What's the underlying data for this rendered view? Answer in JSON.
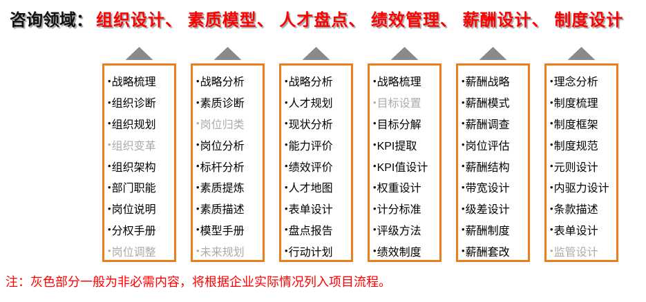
{
  "page": {
    "title_label": "咨询领域：",
    "title_categories": "组织设计、 素质模型、 人才盘点、 绩效管理、 薪酬设计、 制度设计",
    "note": "注：灰色部分一般为非必需内容，将根据企业实际情况列入项目流程。"
  },
  "bullet": "•",
  "colors": {
    "accent_orange": "#EE7D1C",
    "arrow_gray": "#8A8A8A",
    "muted_gray_text": "#ABABAB",
    "highlight_red": "#FF0000"
  },
  "columns": [
    {
      "category": "组织设计",
      "items": [
        {
          "text": "战略梳理",
          "muted": false
        },
        {
          "text": "组织诊断",
          "muted": false
        },
        {
          "text": "组织规划",
          "muted": false
        },
        {
          "text": "组织变革",
          "muted": true
        },
        {
          "text": "组织架构",
          "muted": false
        },
        {
          "text": "部门职能",
          "muted": false
        },
        {
          "text": "岗位说明",
          "muted": false
        },
        {
          "text": "分权手册",
          "muted": false
        },
        {
          "text": "岗位调整",
          "muted": true
        }
      ]
    },
    {
      "category": "素质模型",
      "items": [
        {
          "text": "战略分析",
          "muted": false
        },
        {
          "text": "素质诊断",
          "muted": false
        },
        {
          "text": "岗位归类",
          "muted": true
        },
        {
          "text": "岗位分析",
          "muted": false
        },
        {
          "text": "标杆分析",
          "muted": false
        },
        {
          "text": "素质提炼",
          "muted": false
        },
        {
          "text": "素质描述",
          "muted": false
        },
        {
          "text": "模型手册",
          "muted": false
        },
        {
          "text": "未来规划",
          "muted": true
        }
      ]
    },
    {
      "category": "人才盘点",
      "items": [
        {
          "text": "战略分析",
          "muted": false
        },
        {
          "text": "人才规划",
          "muted": false
        },
        {
          "text": "现状分析",
          "muted": false
        },
        {
          "text": "能力评价",
          "muted": false
        },
        {
          "text": "绩效评价",
          "muted": false
        },
        {
          "text": "人才地图",
          "muted": false
        },
        {
          "text": "表单设计",
          "muted": false
        },
        {
          "text": "盘点报告",
          "muted": false
        },
        {
          "text": "行动计划",
          "muted": false
        }
      ]
    },
    {
      "category": "绩效管理",
      "items": [
        {
          "text": "战略梳理",
          "muted": false
        },
        {
          "text": "目标设置",
          "muted": true
        },
        {
          "text": "目标分解",
          "muted": false
        },
        {
          "text": "KPI提取",
          "muted": false
        },
        {
          "text": "KPI值设计",
          "muted": false
        },
        {
          "text": "权重设计",
          "muted": false
        },
        {
          "text": "计分标准",
          "muted": false
        },
        {
          "text": "评级方法",
          "muted": false
        },
        {
          "text": "绩效制度",
          "muted": false
        }
      ]
    },
    {
      "category": "薪酬设计",
      "items": [
        {
          "text": "薪酬战略",
          "muted": false
        },
        {
          "text": "薪酬模式",
          "muted": false
        },
        {
          "text": "薪酬调查",
          "muted": false
        },
        {
          "text": "岗位评估",
          "muted": false
        },
        {
          "text": "薪酬结构",
          "muted": false
        },
        {
          "text": "带宽设计",
          "muted": false
        },
        {
          "text": "级差设计",
          "muted": false
        },
        {
          "text": "薪酬制度",
          "muted": false
        },
        {
          "text": "薪酬套改",
          "muted": false
        }
      ]
    },
    {
      "category": "制度设计",
      "items": [
        {
          "text": "理念分析",
          "muted": false
        },
        {
          "text": "制度梳理",
          "muted": false
        },
        {
          "text": "制度框架",
          "muted": false
        },
        {
          "text": "制度规范",
          "muted": false
        },
        {
          "text": "元则设计",
          "muted": false
        },
        {
          "text": "内驱力设计",
          "muted": false
        },
        {
          "text": "条款描述",
          "muted": false
        },
        {
          "text": "表单设计",
          "muted": false
        },
        {
          "text": "监管设计",
          "muted": true
        }
      ]
    }
  ]
}
